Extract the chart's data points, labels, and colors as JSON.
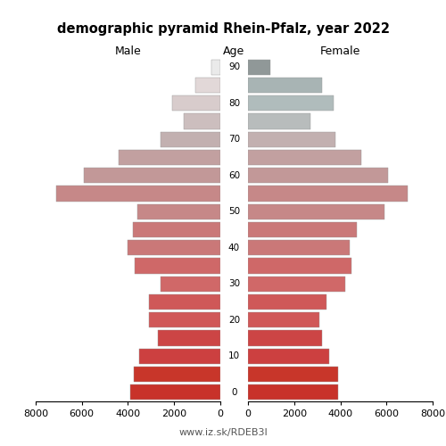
{
  "title": "demographic pyramid Rhein-Pfalz, year 2022",
  "male_values": [
    3900,
    3750,
    3500,
    2700,
    3100,
    3100,
    2600,
    3700,
    4000,
    3800,
    3600,
    7100,
    5900,
    4400,
    2600,
    1600,
    2100,
    1100,
    380
  ],
  "female_values": [
    3900,
    3900,
    3500,
    3200,
    3100,
    3400,
    4200,
    4500,
    4400,
    4700,
    5900,
    6900,
    6050,
    4900,
    3800,
    2700,
    3700,
    3200,
    950
  ],
  "age_labels": [
    "0",
    "10",
    "20",
    "30",
    "40",
    "50",
    "60",
    "70",
    "80",
    "90"
  ],
  "age_label_indices": [
    0,
    2,
    4,
    6,
    8,
    10,
    12,
    14,
    16,
    18
  ],
  "colors_male": [
    "#c8322a",
    "#c8362a",
    "#cc4040",
    "#cc4545",
    "#d05858",
    "#cf5858",
    "#d06868",
    "#cf6868",
    "#ca7878",
    "#ca7878",
    "#c68888",
    "#c68888",
    "#c29898",
    "#c2a0a0",
    "#c2b0b0",
    "#ccbebe",
    "#d8cccc",
    "#e2d8d8",
    "#eaeaea"
  ],
  "colors_female": [
    "#c8322a",
    "#c8362a",
    "#cc4040",
    "#cc4545",
    "#d05858",
    "#cf5858",
    "#d06868",
    "#cf6868",
    "#ca7878",
    "#ca7878",
    "#c68888",
    "#c68888",
    "#c29898",
    "#c2a0a0",
    "#c2b0b0",
    "#b8bcbc",
    "#b0bcbc",
    "#a8b4b4",
    "#909898"
  ],
  "xlabel_left": "Male",
  "xlabel_right": "Female",
  "xlabel_center": "Age",
  "xlim": 8000,
  "xticks": [
    0,
    2000,
    4000,
    6000,
    8000
  ],
  "xtick_labels": [
    "0",
    "2000",
    "4000",
    "6000",
    "8000"
  ],
  "footer": "www.iz.sk/RDEB3I",
  "background_color": "#ffffff",
  "bar_height": 0.85,
  "bar_edgecolor": "#999999",
  "bar_linewidth": 0.3
}
